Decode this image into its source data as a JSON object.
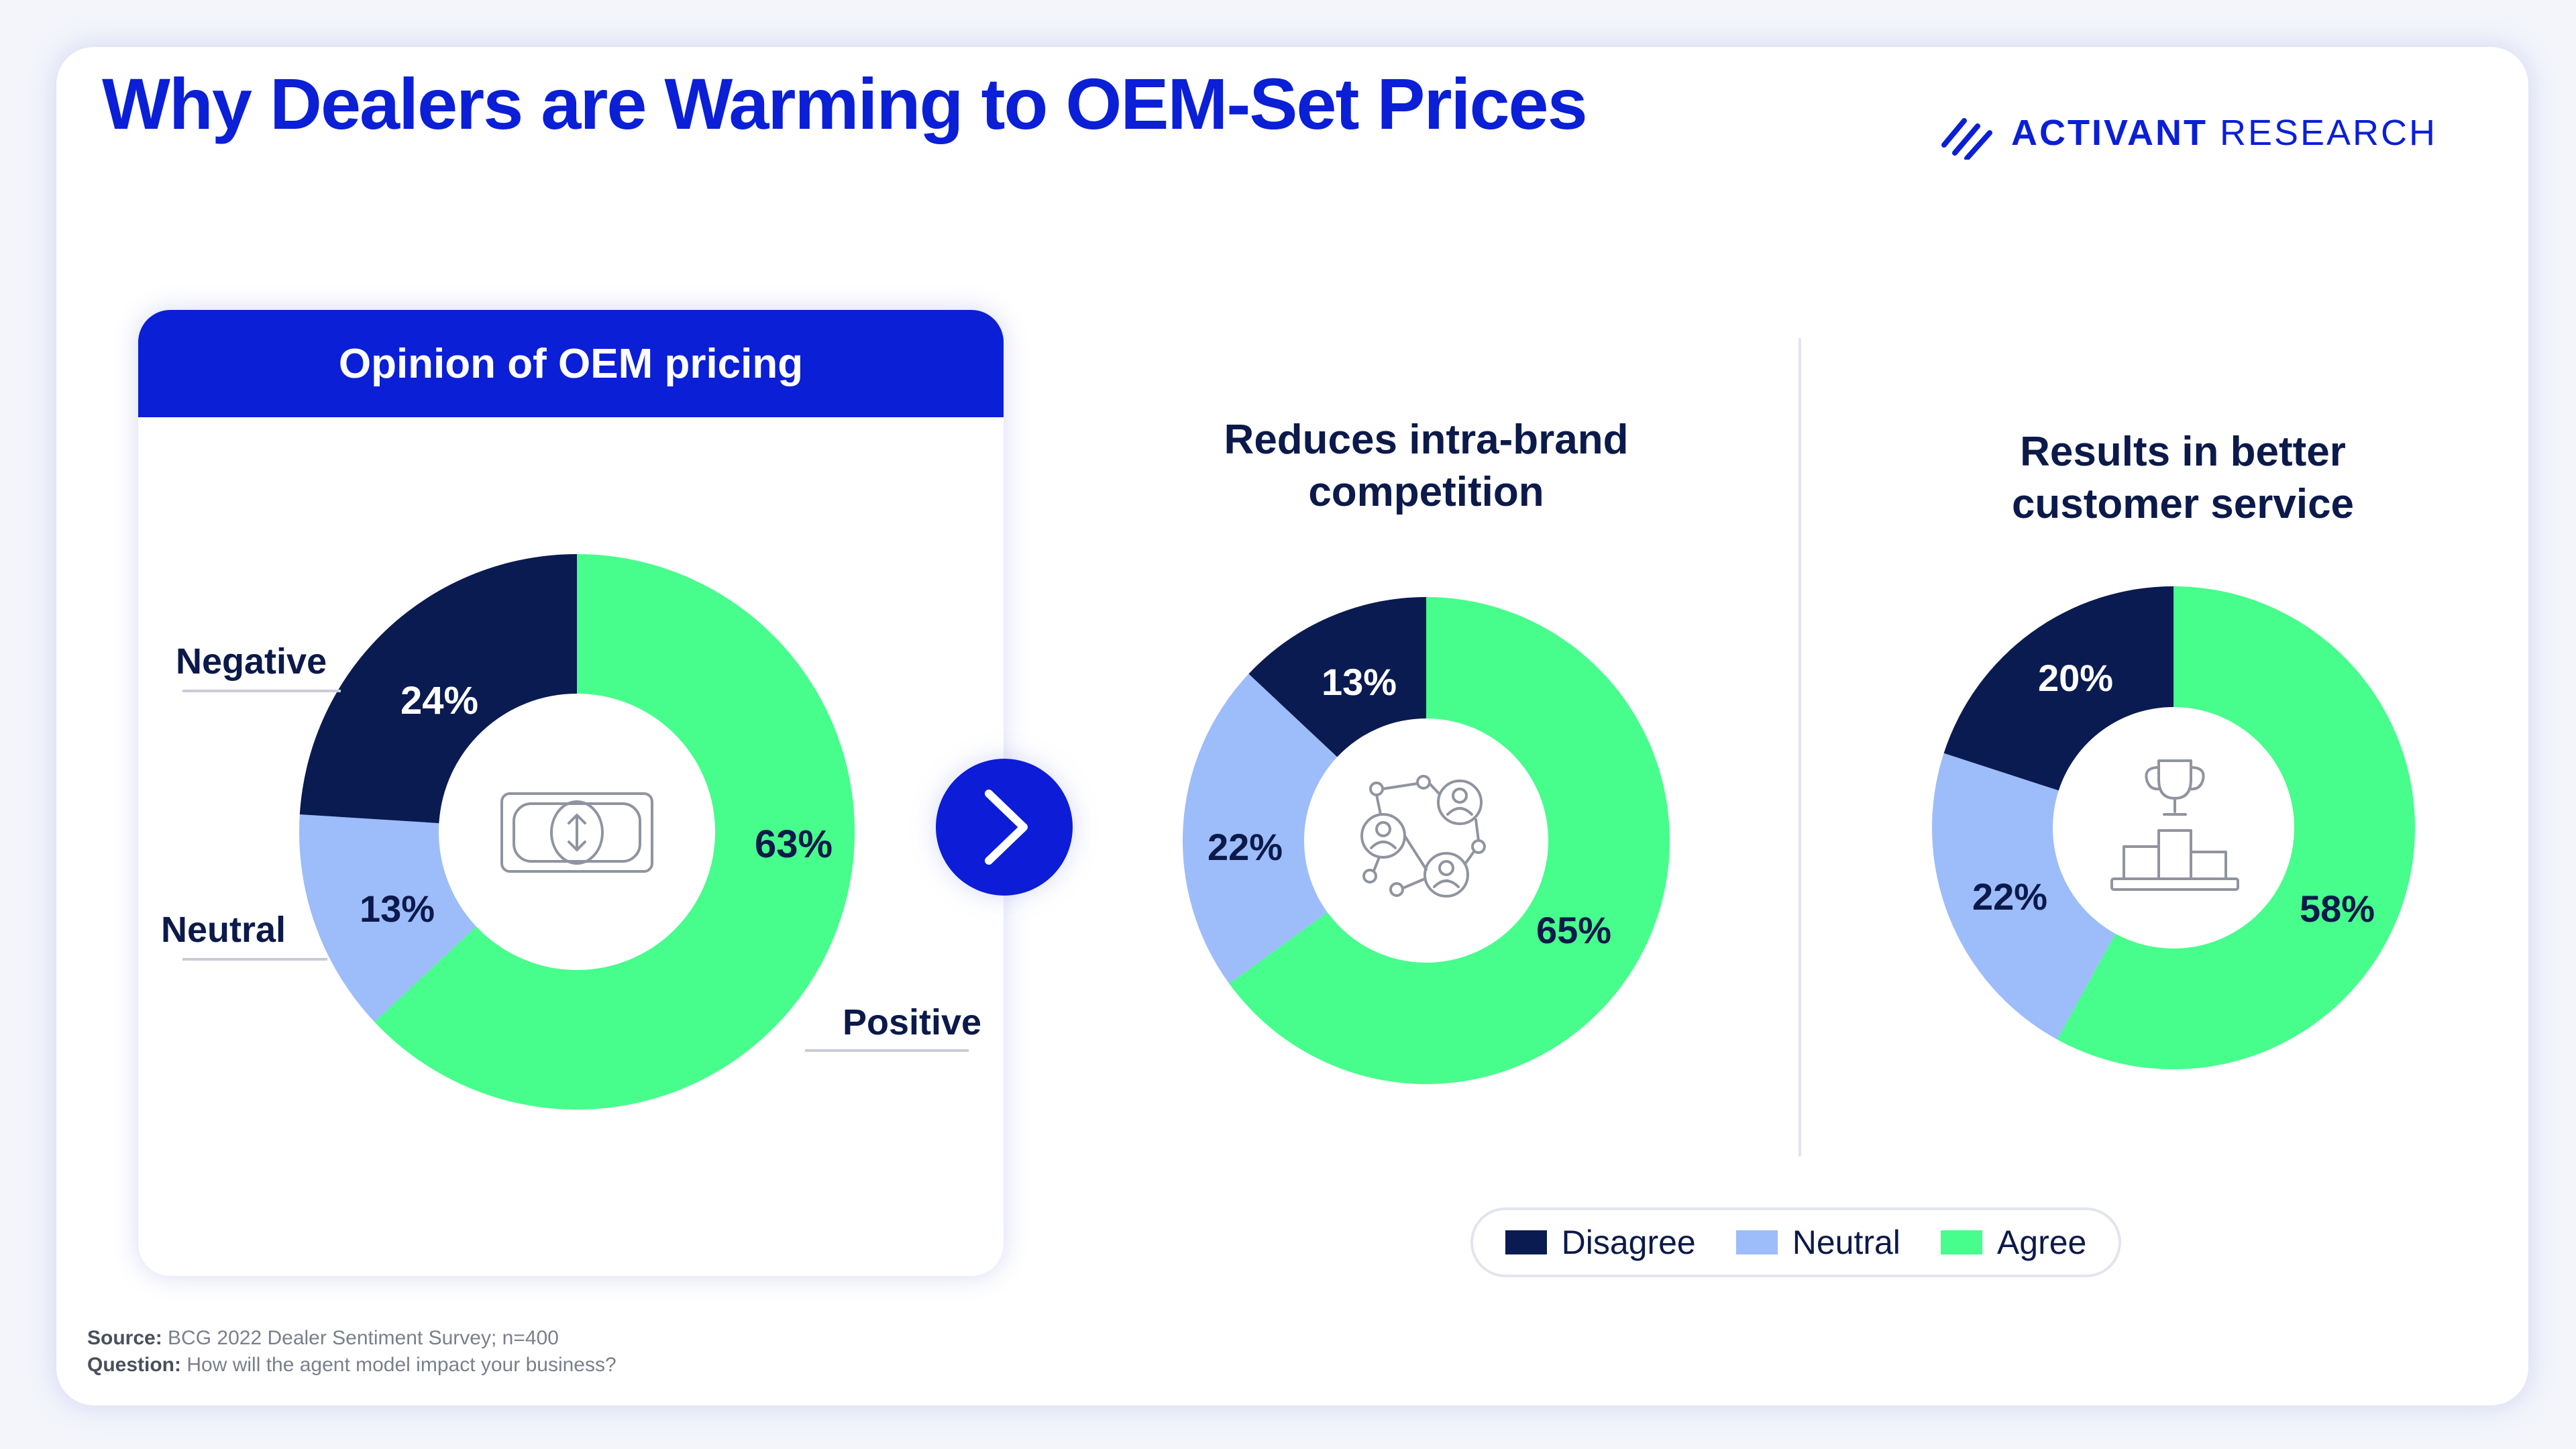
{
  "title": "Why Dealers are Warming to OEM-Set Prices",
  "logo": {
    "brand": "ACTIVANT",
    "suffix": " RESEARCH",
    "icon": "activant-chevrons-icon"
  },
  "colors": {
    "brand": "#0a1fd6",
    "dark": "#0b1a4a",
    "navy": "#0a1b52",
    "neutral": "#9dbcfa",
    "agree": "#47fd8c"
  },
  "legend": [
    {
      "label": "Disagree",
      "color": "#0a1b52"
    },
    {
      "label": "Neutral",
      "color": "#9dbcfa"
    },
    {
      "label": "Agree",
      "color": "#47fd8c"
    }
  ],
  "footnote": {
    "source_label": "Source:",
    "source_text": "BCG 2022 Dealer Sentiment Survey; n=400",
    "question_label": "Question:",
    "question_text": "How will the agent model impact your business?"
  },
  "chart_data": [
    {
      "type": "pie",
      "title": "Opinion of OEM pricing",
      "center_icon": "banknote-icon",
      "slices": [
        {
          "label": "Negative",
          "value": 24,
          "display": "24%",
          "color": "#0a1b52"
        },
        {
          "label": "Neutral",
          "value": 13,
          "display": "13%",
          "color": "#9dbcfa"
        },
        {
          "label": "Positive",
          "value": 63,
          "display": "63%",
          "color": "#47fd8c"
        }
      ]
    },
    {
      "type": "pie",
      "title": "Reduces intra-brand competition",
      "title_lines": [
        "Reduces intra-brand",
        "competition"
      ],
      "center_icon": "network-people-icon",
      "slices": [
        {
          "label": "Disagree",
          "value": 13,
          "display": "13%",
          "color": "#0a1b52"
        },
        {
          "label": "Neutral",
          "value": 22,
          "display": "22%",
          "color": "#9dbcfa"
        },
        {
          "label": "Agree",
          "value": 65,
          "display": "65%",
          "color": "#47fd8c"
        }
      ]
    },
    {
      "type": "pie",
      "title": "Results in better customer service",
      "title_lines": [
        "Results in better",
        "customer service"
      ],
      "center_icon": "trophy-podium-icon",
      "slices": [
        {
          "label": "Disagree",
          "value": 20,
          "display": "20%",
          "color": "#0a1b52"
        },
        {
          "label": "Neutral",
          "value": 22,
          "display": "22%",
          "color": "#9dbcfa"
        },
        {
          "label": "Agree",
          "value": 58,
          "display": "58%",
          "color": "#47fd8c"
        }
      ]
    }
  ]
}
